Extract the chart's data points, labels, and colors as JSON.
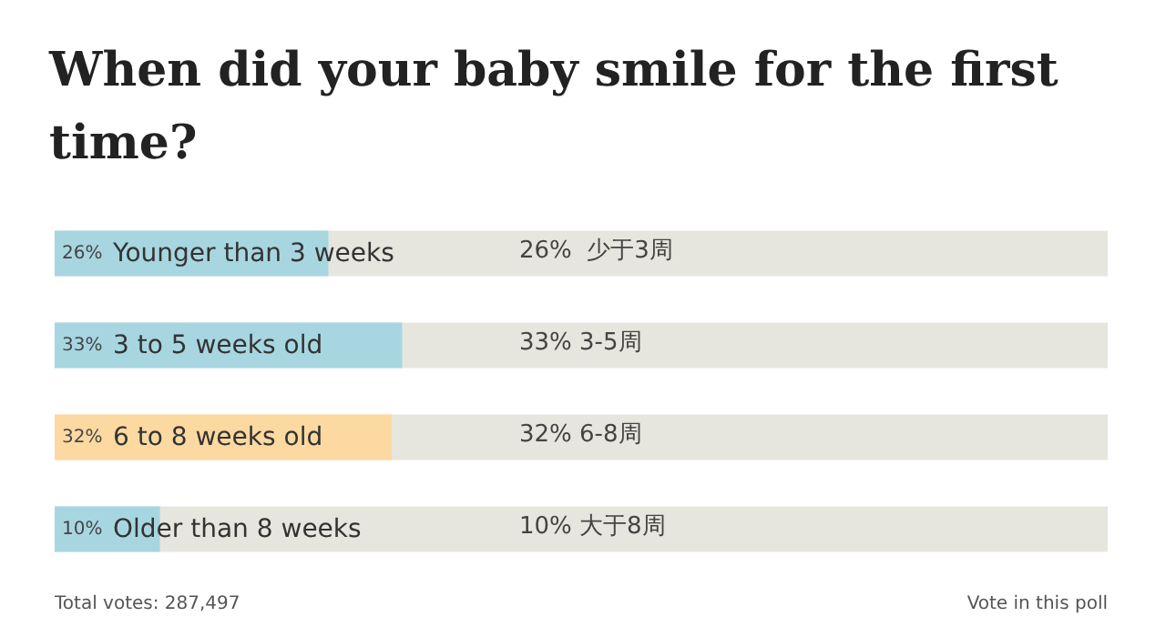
{
  "chart_data": {
    "type": "bar",
    "orientation": "horizontal",
    "title": "When did your baby smile for the first time?",
    "categories": [
      "Younger than 3 weeks",
      "3 to 5 weeks old",
      "6 to 8 weeks old",
      "Older than 8 weeks"
    ],
    "values": [
      26,
      33,
      32,
      10
    ],
    "colors": [
      "#a7d6e1",
      "#a7d6e1",
      "#fcd9a0",
      "#a7d6e1"
    ],
    "value_labels": [
      "26%",
      "33%",
      "32%",
      "10%"
    ],
    "xlim": [
      0,
      100
    ],
    "tick_labels": "y",
    "annotations": [
      "26%  少于3周",
      "33% 3-5周",
      "32% 6-8周",
      "10% 大于8周",
      "Total votes: 287,497",
      "Vote in this poll"
    ]
  }
}
